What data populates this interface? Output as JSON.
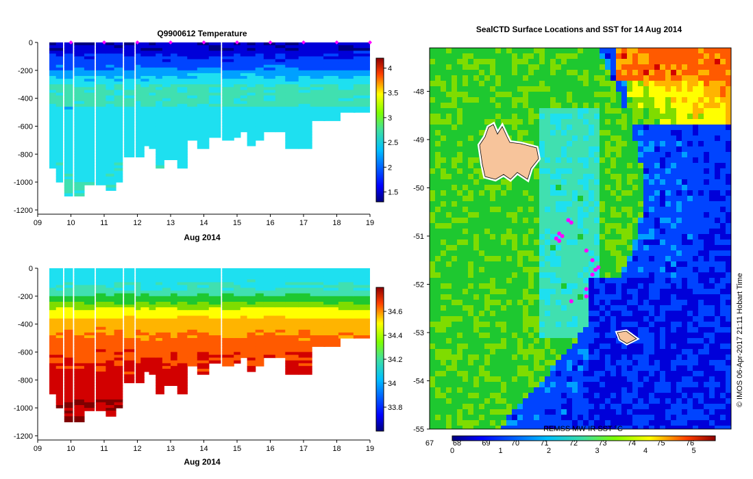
{
  "chart_data": [
    {
      "id": "temperature-section",
      "type": "heatmap",
      "title": "Q9900612  Temperature",
      "xlabel": "Aug 2014",
      "ylabel": "",
      "x_ticks": [
        "09",
        "10",
        "11",
        "12",
        "13",
        "14",
        "15",
        "16",
        "17",
        "18",
        "19"
      ],
      "xlim": [
        9,
        19
      ],
      "y_ticks": [
        0,
        -200,
        -400,
        -600,
        -800,
        -1000,
        -1200
      ],
      "ylim": [
        -1230,
        0
      ],
      "colorbar": {
        "ticks": [
          1.5,
          2,
          2.5,
          3,
          3.5,
          4
        ],
        "range": [
          1.3,
          4.2
        ]
      },
      "surface_markers_days": [
        10.0,
        11.0,
        12.0,
        13.0,
        14.0,
        15.0,
        16.0,
        17.0,
        18.0,
        19.0
      ],
      "profiles": [
        {
          "x": 9.35,
          "w": 0.2,
          "depth": -900
        },
        {
          "x": 9.55,
          "w": 0.2,
          "depth": -1000
        },
        {
          "x": 9.8,
          "w": 0.25,
          "depth": -1090
        },
        {
          "x": 10.1,
          "w": 0.3,
          "depth": -1090
        },
        {
          "x": 10.4,
          "w": 0.3,
          "depth": -1010
        },
        {
          "x": 10.75,
          "w": 0.3,
          "depth": -1010
        },
        {
          "x": 11.05,
          "w": 0.3,
          "depth": -1050
        },
        {
          "x": 11.3,
          "w": 0.25,
          "depth": -1000
        },
        {
          "x": 11.6,
          "w": 0.3,
          "depth": -820
        },
        {
          "x": 11.95,
          "w": 0.25,
          "depth": -820
        },
        {
          "x": 12.1,
          "w": 0.25,
          "depth": -730
        },
        {
          "x": 12.35,
          "w": 0.25,
          "depth": -760
        },
        {
          "x": 12.55,
          "w": 0.25,
          "depth": -900
        },
        {
          "x": 12.75,
          "w": 0.25,
          "depth": -830
        },
        {
          "x": 13.0,
          "w": 0.25,
          "depth": -830
        },
        {
          "x": 13.2,
          "w": 0.3,
          "depth": -890
        },
        {
          "x": 13.5,
          "w": 0.3,
          "depth": -700
        },
        {
          "x": 13.8,
          "w": 0.35,
          "depth": -750
        },
        {
          "x": 14.15,
          "w": 0.35,
          "depth": -670
        },
        {
          "x": 14.55,
          "w": 0.35,
          "depth": -700
        },
        {
          "x": 14.9,
          "w": 0.2,
          "depth": -680
        },
        {
          "x": 15.1,
          "w": 0.2,
          "depth": -630
        },
        {
          "x": 15.3,
          "w": 0.25,
          "depth": -730
        },
        {
          "x": 15.55,
          "w": 0.25,
          "depth": -700
        },
        {
          "x": 15.8,
          "w": 0.35,
          "depth": -640
        },
        {
          "x": 16.15,
          "w": 0.3,
          "depth": -640
        },
        {
          "x": 16.45,
          "w": 0.4,
          "depth": -760
        },
        {
          "x": 16.85,
          "w": 0.4,
          "depth": -760
        },
        {
          "x": 17.2,
          "w": 0.45,
          "depth": -560
        },
        {
          "x": 17.6,
          "w": 0.5,
          "depth": -550
        },
        {
          "x": 18.05,
          "w": 0.5,
          "depth": -500
        },
        {
          "x": 18.5,
          "w": 0.5,
          "depth": -500
        }
      ]
    },
    {
      "id": "salinity-section",
      "type": "heatmap",
      "title": "",
      "xlabel": "Aug 2014",
      "ylabel": "",
      "x_ticks": [
        "09",
        "10",
        "11",
        "12",
        "13",
        "14",
        "15",
        "16",
        "17",
        "18",
        "19"
      ],
      "xlim": [
        9,
        19
      ],
      "y_ticks": [
        0,
        -200,
        -400,
        -600,
        -800,
        -1000,
        -1200
      ],
      "ylim": [
        -1230,
        0
      ],
      "colorbar": {
        "ticks": [
          33.8,
          34,
          34.2,
          34.4,
          34.6
        ],
        "range": [
          33.6,
          34.8
        ]
      }
    },
    {
      "id": "sst-map",
      "type": "heatmap",
      "title": "SealCTD Surface Locations and SST for 14 Aug 2014",
      "lat_ticks": [
        "-48",
        "-49",
        "-50",
        "-51",
        "-52",
        "-53",
        "-54",
        "-55"
      ],
      "lat_range": [
        -55,
        -47.1
      ],
      "lon_tick_left": "67",
      "colorbar": {
        "label": "REMSS MW-IR SST °C",
        "ticks_c": [
          "0",
          "1",
          "2",
          "3",
          "4",
          "5"
        ],
        "ticks_f": [
          "68",
          "69",
          "70",
          "71",
          "72",
          "73",
          "74",
          "75",
          "76"
        ]
      },
      "credit": "© IMOS 06-Apr-2017 21:11 Hobart Time",
      "seal_track_points": [
        {
          "lat": -50.67,
          "lon_frac": 0.46
        },
        {
          "lat": -50.72,
          "lon_frac": 0.47
        },
        {
          "lat": -50.95,
          "lon_frac": 0.43
        },
        {
          "lat": -51.0,
          "lon_frac": 0.44
        },
        {
          "lat": -51.05,
          "lon_frac": 0.42
        },
        {
          "lat": -51.1,
          "lon_frac": 0.43
        },
        {
          "lat": -51.3,
          "lon_frac": 0.52
        },
        {
          "lat": -51.5,
          "lon_frac": 0.54
        },
        {
          "lat": -51.65,
          "lon_frac": 0.56
        },
        {
          "lat": -51.7,
          "lon_frac": 0.55
        },
        {
          "lat": -51.8,
          "lon_frac": 0.54
        },
        {
          "lat": -52.1,
          "lon_frac": 0.52
        },
        {
          "lat": -52.25,
          "lon_frac": 0.52
        },
        {
          "lat": -52.35,
          "lon_frac": 0.47
        }
      ]
    }
  ],
  "colors": {
    "cmap": [
      "#00007f",
      "#0000d9",
      "#0044ff",
      "#00a0ff",
      "#1ee0f0",
      "#40e0b0",
      "#1ec830",
      "#7fdc00",
      "#ffff00",
      "#ffb400",
      "#ff5a00",
      "#d20000",
      "#7f0000"
    ],
    "marker": "#ff00ff",
    "land": "#f7c49b",
    "land_edge": "#000000"
  }
}
